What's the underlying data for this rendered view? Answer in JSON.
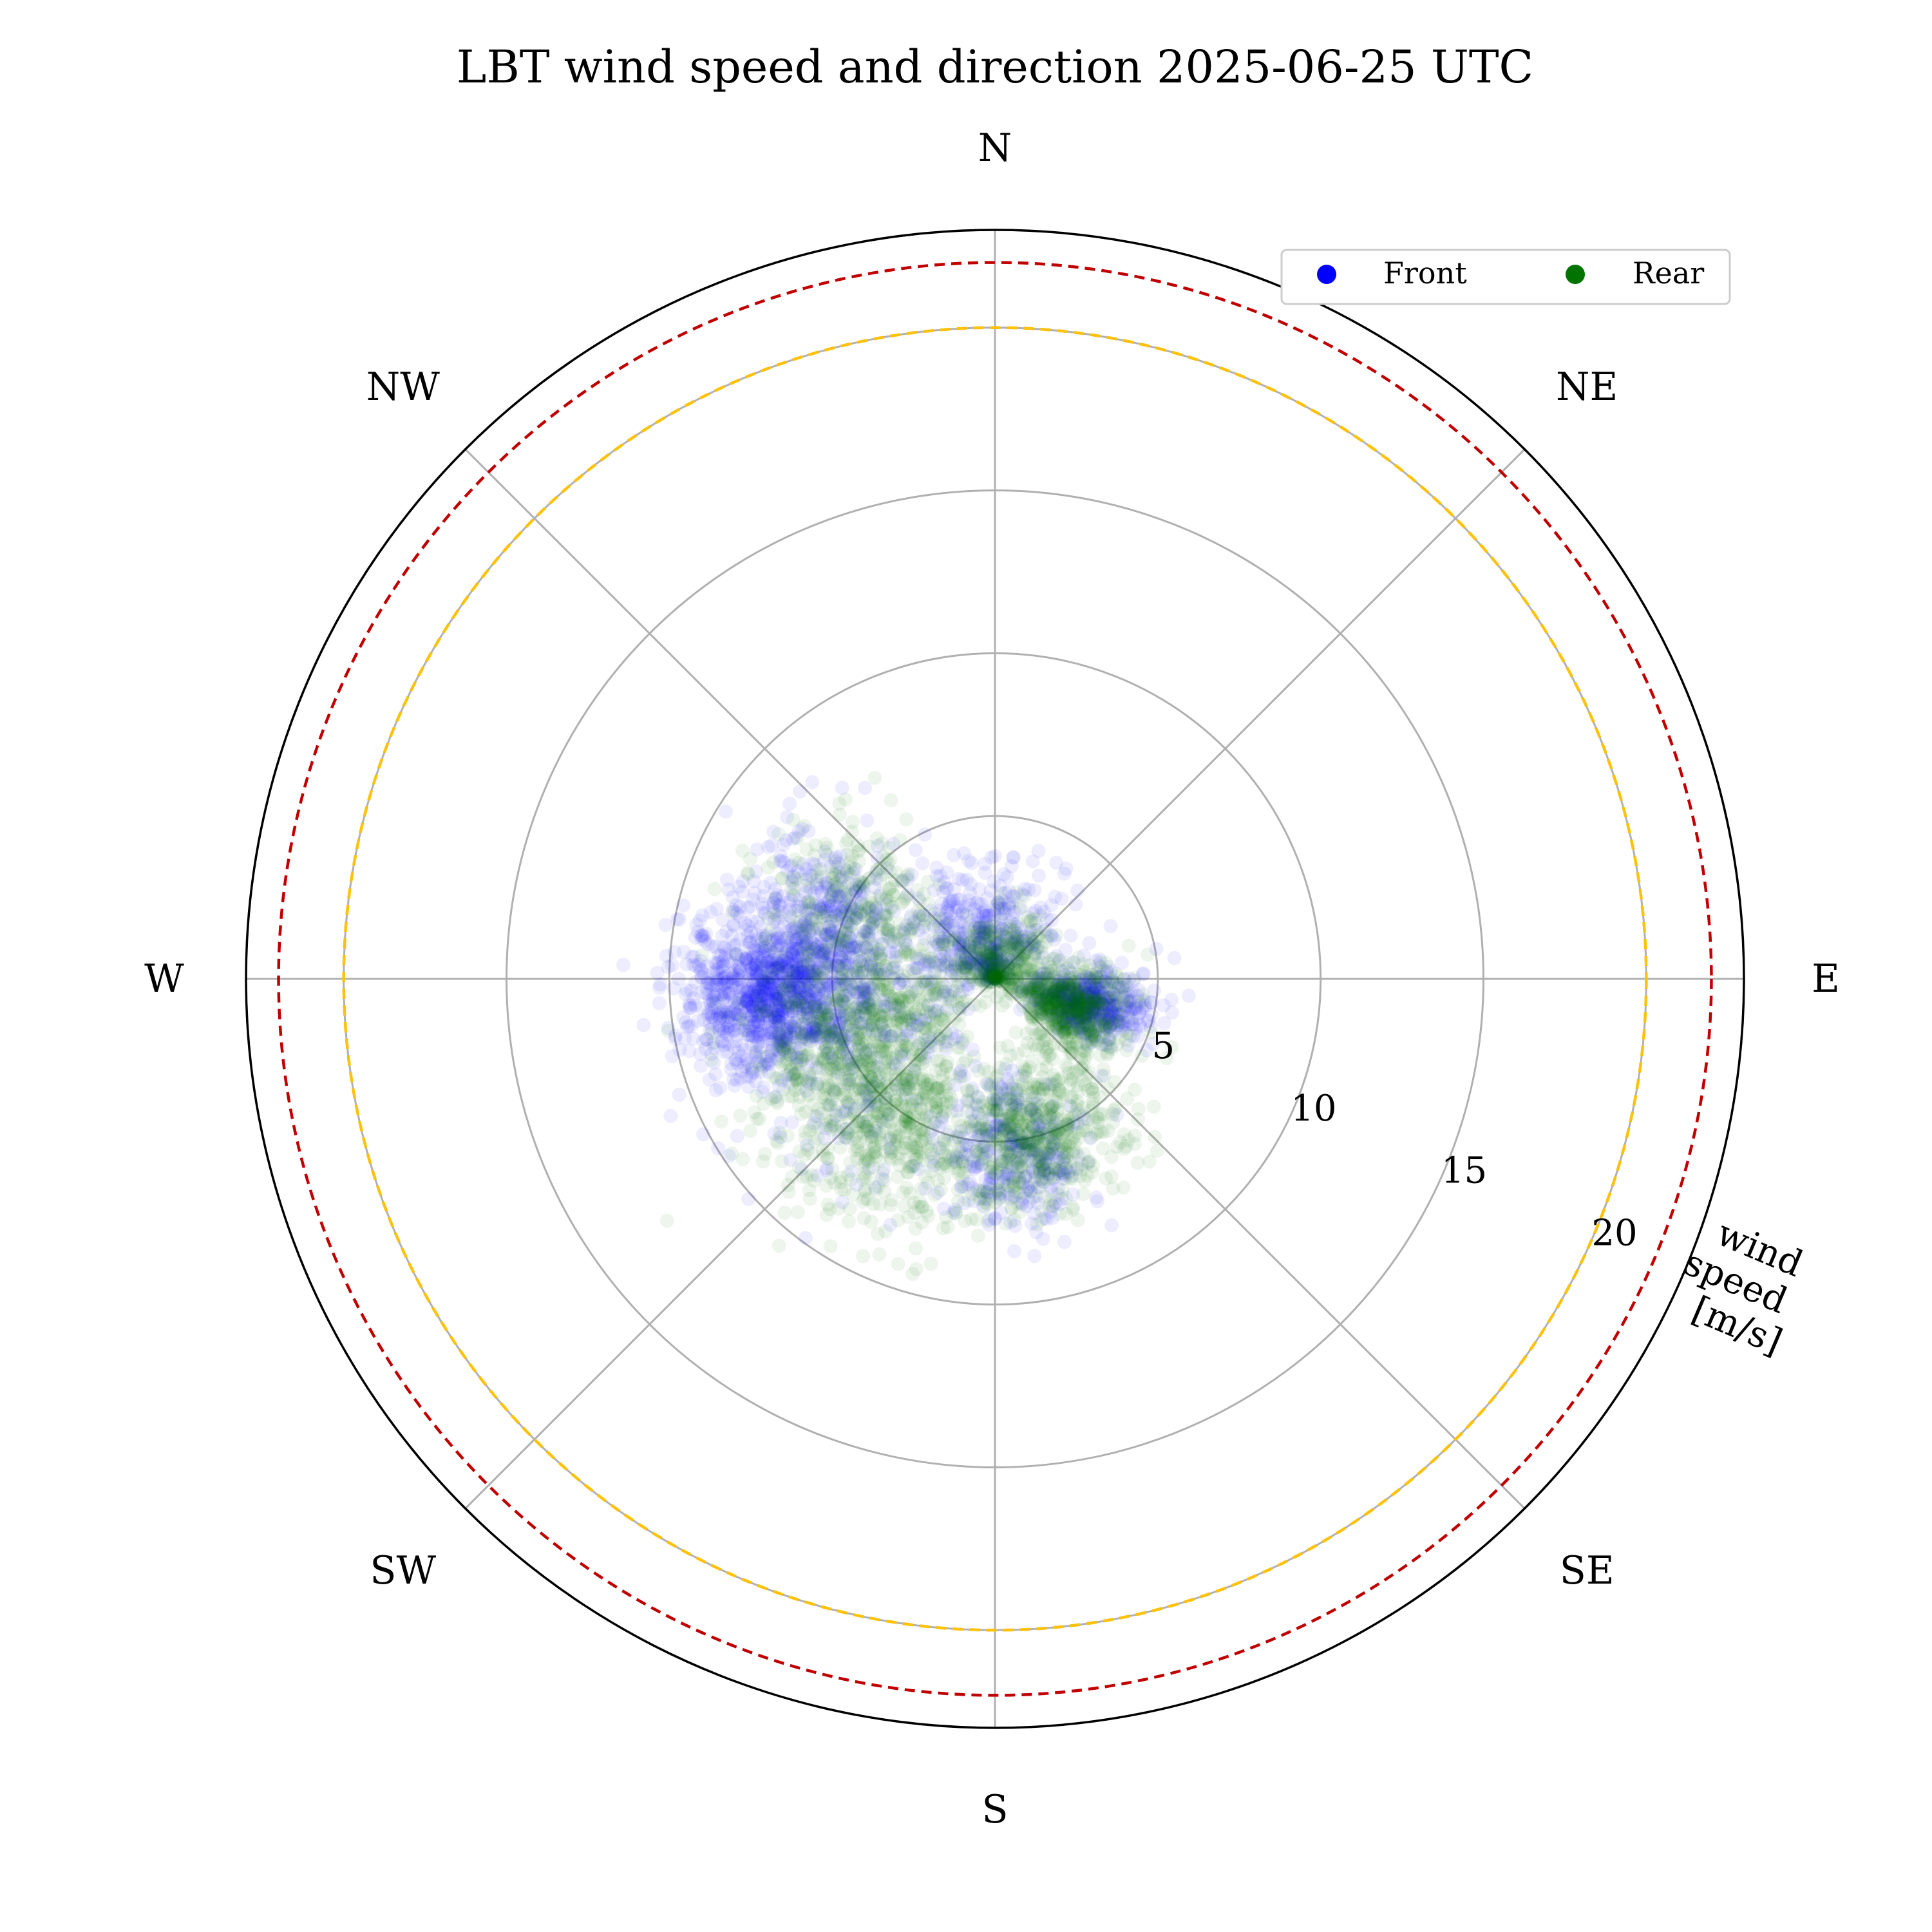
{
  "chart_data": {
    "type": "scatter",
    "projection": "polar",
    "title": "LBT wind speed and direction 2025-06-25 UTC",
    "direction_labels": [
      "N",
      "NE",
      "E",
      "SE",
      "S",
      "SW",
      "W",
      "NW"
    ],
    "r_tick_labels": [
      "5",
      "10",
      "15",
      "20"
    ],
    "r_ticks": [
      5,
      10,
      15,
      20
    ],
    "rlim": [
      0,
      23
    ],
    "r_label": "wind speed [m/s]",
    "r_label_lines": [
      "wind",
      "speed",
      "[m/s]"
    ],
    "grid": true,
    "legend_position": "top-right",
    "reference_circles": [
      {
        "r": 20,
        "style": "dashed",
        "color": "#ffc20a"
      },
      {
        "r": 22,
        "style": "dashed",
        "color": "#c00000"
      }
    ],
    "series": [
      {
        "name": "Front",
        "color": "#0000ff",
        "clusters": [
          {
            "dir_deg": 265,
            "speed_center": 7.0,
            "speed_spread": 1.4,
            "dir_spread": 9,
            "count": 900
          },
          {
            "dir_deg": 285,
            "speed_center": 5.8,
            "speed_spread": 1.5,
            "dir_spread": 14,
            "count": 450
          },
          {
            "dir_deg": 345,
            "speed_center": 1.5,
            "speed_spread": 1.2,
            "dir_spread": 40,
            "count": 400
          },
          {
            "dir_deg": 105,
            "speed_center": 3.0,
            "speed_spread": 0.9,
            "dir_spread": 10,
            "count": 450
          },
          {
            "dir_deg": 175,
            "speed_center": 5.5,
            "speed_spread": 1.2,
            "dir_spread": 12,
            "count": 300
          },
          {
            "dir_deg": 240,
            "speed_center": 5.0,
            "speed_spread": 2.0,
            "dir_spread": 20,
            "count": 200
          }
        ]
      },
      {
        "name": "Rear",
        "color": "#007300",
        "clusters": [
          {
            "dir_deg": 250,
            "speed_center": 4.8,
            "speed_spread": 1.8,
            "dir_spread": 18,
            "count": 700
          },
          {
            "dir_deg": 215,
            "speed_center": 5.8,
            "speed_spread": 1.5,
            "dir_spread": 14,
            "count": 500
          },
          {
            "dir_deg": 165,
            "speed_center": 5.0,
            "speed_spread": 1.2,
            "dir_spread": 14,
            "count": 550
          },
          {
            "dir_deg": 110,
            "speed_center": 2.6,
            "speed_spread": 0.9,
            "dir_spread": 14,
            "count": 550
          },
          {
            "dir_deg": 300,
            "speed_center": 5.0,
            "speed_spread": 1.5,
            "dir_spread": 12,
            "count": 250
          },
          {
            "dir_deg": 20,
            "speed_center": 0.9,
            "speed_spread": 0.7,
            "dir_spread": 60,
            "count": 350
          }
        ]
      }
    ]
  }
}
